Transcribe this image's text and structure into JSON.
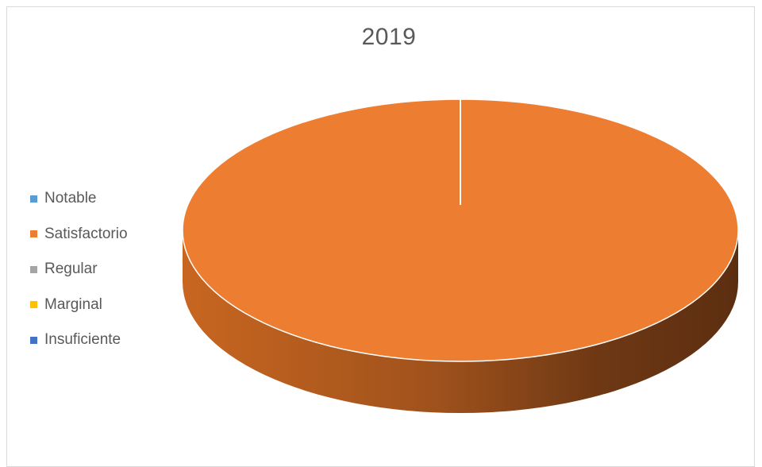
{
  "chart_data": {
    "type": "pie",
    "title": "2019",
    "categories": [
      "Notable",
      "Satisfactorio",
      "Regular",
      "Marginal",
      "Insuficiente"
    ],
    "values": [
      0,
      100,
      0,
      0,
      0
    ],
    "colors": [
      "#5B9BD5",
      "#ED7D31",
      "#A5A5A5",
      "#FFC000",
      "#4472C4"
    ],
    "legend_position": "left",
    "style": "3d"
  }
}
